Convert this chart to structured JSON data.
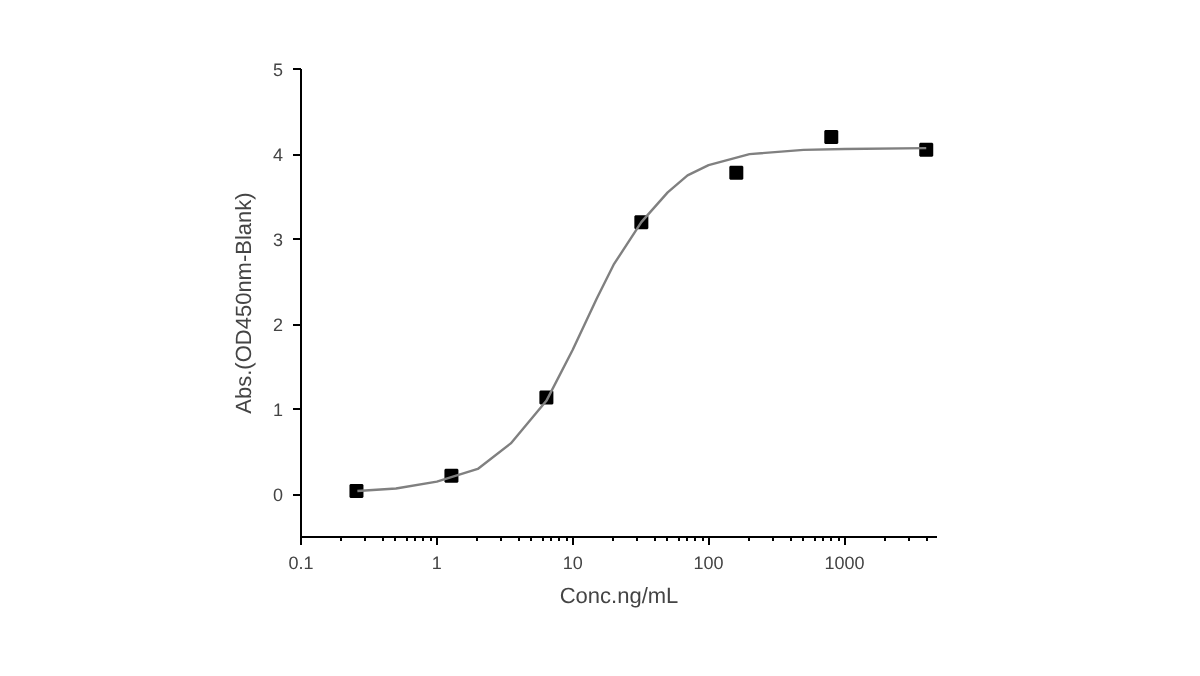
{
  "chart_data": {
    "type": "scatter",
    "xlabel": "Conc.ng/mL",
    "ylabel": "Abs.(OD450nm-Blank)",
    "log": "x",
    "grid": false,
    "xlim": [
      0.1,
      4800
    ],
    "xticks": [
      {
        "value": 0.1,
        "label": "0.1"
      },
      1,
      10,
      100,
      1000
    ],
    "ylim": [
      -0.5,
      5
    ],
    "yticks": [
      0,
      1,
      2,
      3,
      4,
      5
    ],
    "series": [
      {
        "marker": "square",
        "color": "#000000",
        "x": [
          0.256,
          1.28,
          6.4,
          32,
          160,
          800,
          4000
        ],
        "values": [
          0.04,
          0.22,
          1.14,
          3.2,
          3.78,
          4.2,
          4.05
        ]
      },
      {
        "type": "line",
        "marker": "none",
        "color": "#808080",
        "x": [
          0.26,
          0.5,
          1,
          2,
          3.5,
          6.4,
          10,
          15,
          20,
          32,
          50,
          70,
          100,
          200,
          500,
          1000,
          4000
        ],
        "values": [
          0.04,
          0.07,
          0.15,
          0.3,
          0.6,
          1.1,
          1.7,
          2.3,
          2.7,
          3.2,
          3.55,
          3.75,
          3.87,
          4.0,
          4.05,
          4.06,
          4.07
        ]
      }
    ]
  }
}
